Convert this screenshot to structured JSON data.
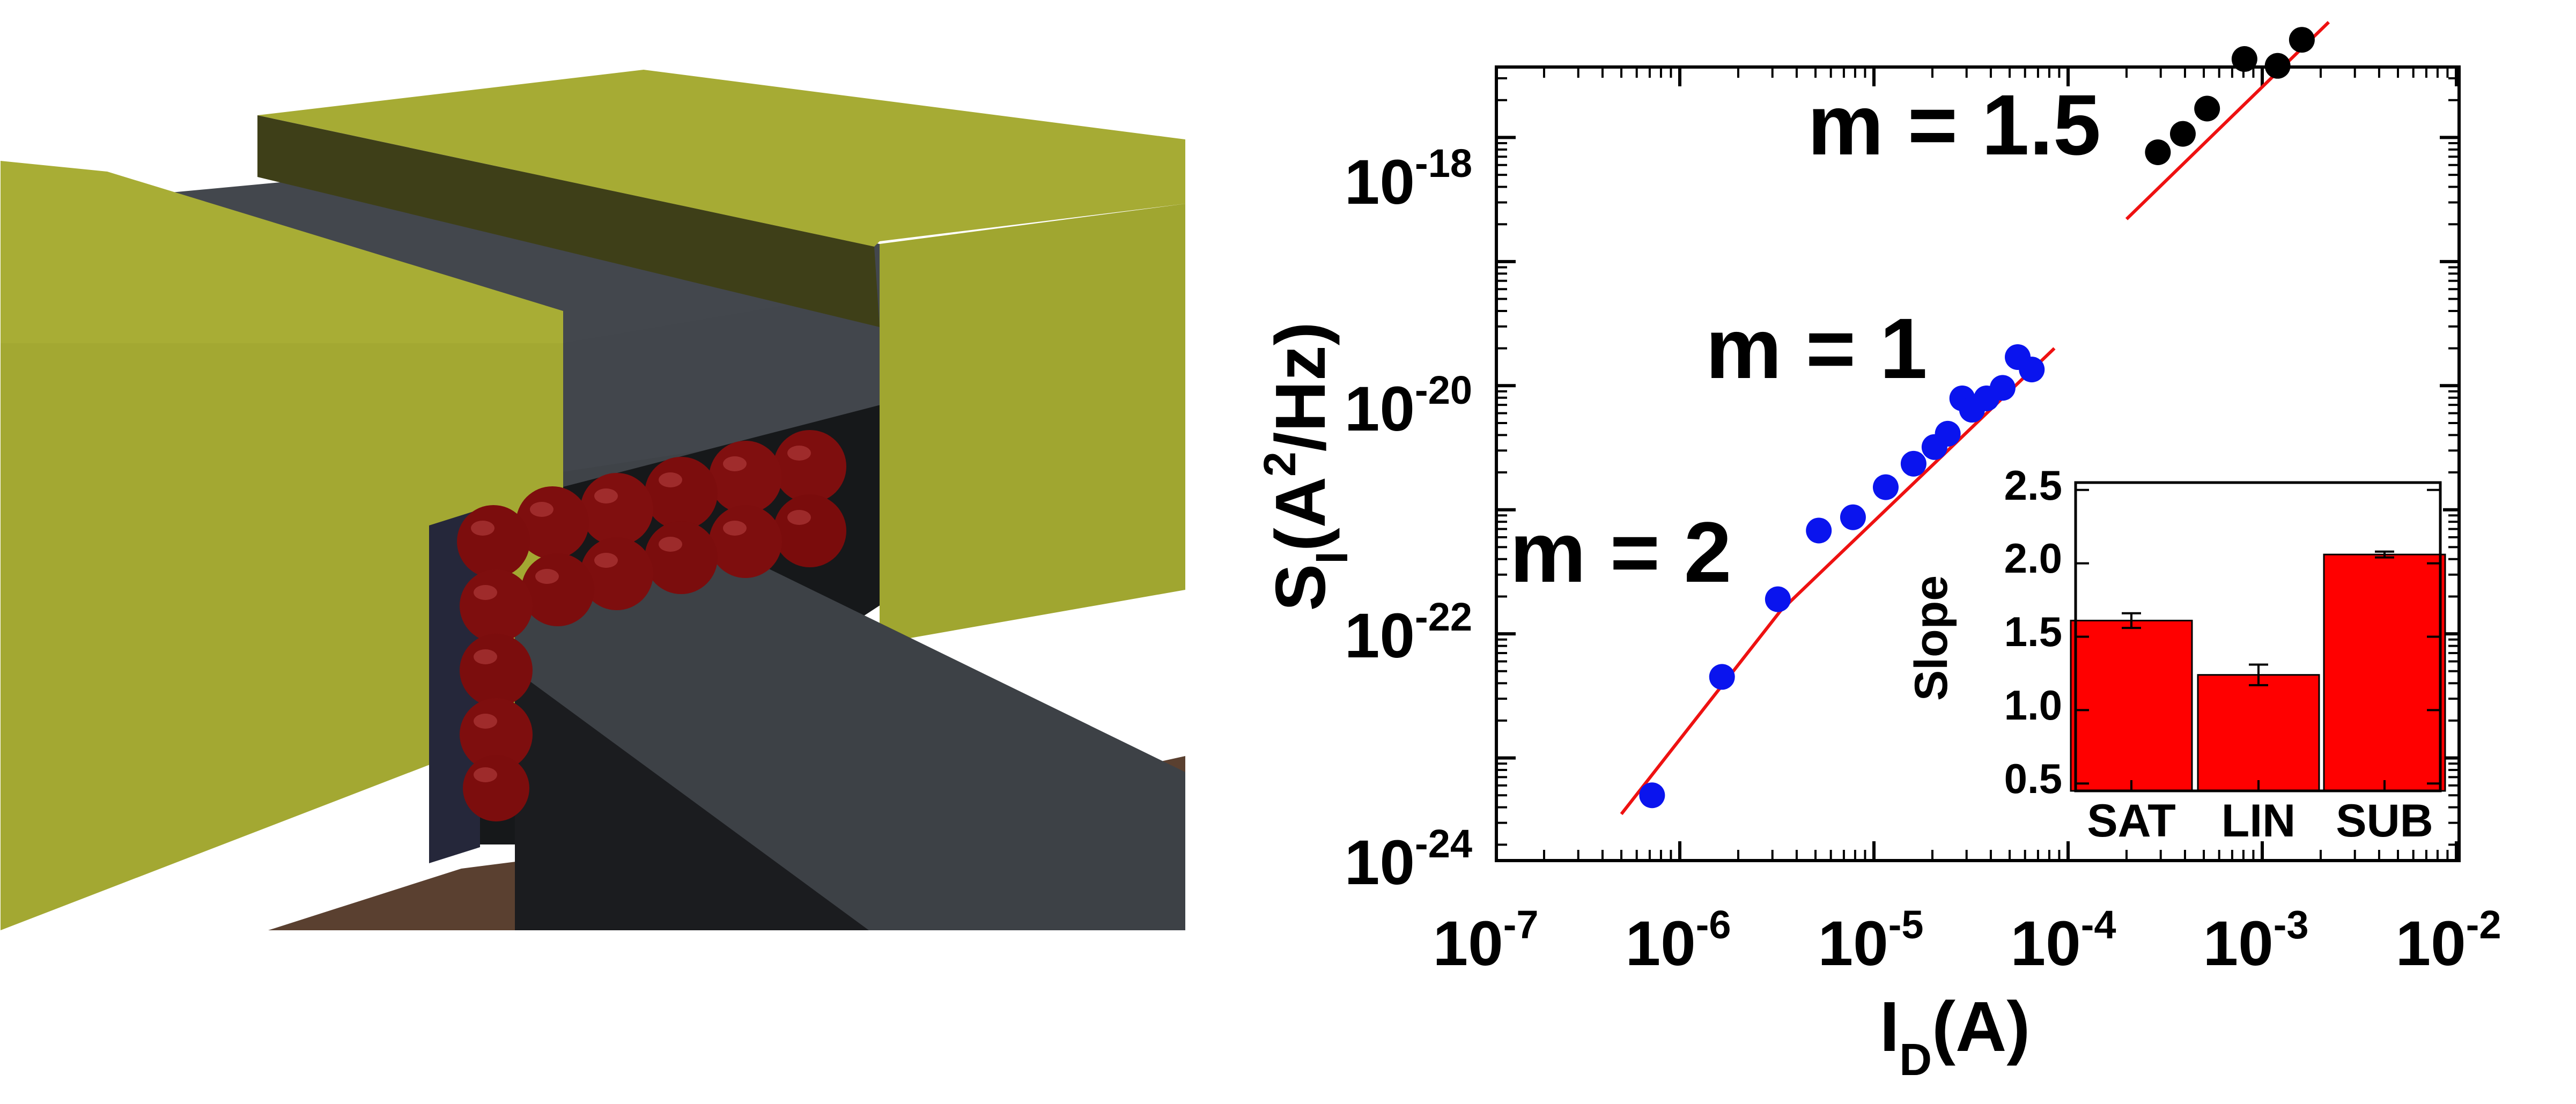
{
  "colors": {
    "electrode": "#a3a832",
    "electrode_side": "#3e3f18",
    "channel": "#42464c",
    "channel_dark": "#1d1f22",
    "substrate": "#5a4030",
    "qd_sphere": "#7e0e0e",
    "blue_points": "#0a14ee",
    "black_points": "#000000",
    "fit_line": "#ee1111",
    "bar": "#ff0000"
  },
  "chart_data": [
    {
      "type": "scatter",
      "xscale": "log",
      "yscale": "log",
      "xlim": [
        1e-07,
        0.01
      ],
      "ylim": [
        1e-24,
        1e-17
      ],
      "x_ticks": [
        {
          "base": "10",
          "exp": "-7",
          "value": 1e-07
        },
        {
          "base": "10",
          "exp": "-6",
          "value": 1e-06
        },
        {
          "base": "10",
          "exp": "-5",
          "value": 1e-05
        },
        {
          "base": "10",
          "exp": "-4",
          "value": 0.0001
        },
        {
          "base": "10",
          "exp": "-3",
          "value": 0.001
        },
        {
          "base": "10",
          "exp": "-2",
          "value": 0.01
        }
      ],
      "y_ticks": [
        {
          "base": "10",
          "exp": "-18",
          "value": 1e-18
        },
        {
          "base": "10",
          "exp": "-20",
          "value": 1e-20
        },
        {
          "base": "10",
          "exp": "-22",
          "value": 1e-22
        },
        {
          "base": "10",
          "exp": "-24",
          "value": 1e-24
        }
      ],
      "xlabel": {
        "main": "I",
        "sub": "D",
        "unit": "(A)"
      },
      "ylabel": {
        "main": "S",
        "sub": "I",
        "unit_pre": "(A",
        "sup": "2",
        "unit_post": "/Hz)"
      },
      "series": [
        {
          "marker": "circle",
          "color": "#0a14ee",
          "x": [
            7.2e-07,
            1.65e-06,
            3.2e-06,
            5.2e-06,
            7.8e-06,
            1.15e-05,
            1.6e-05,
            2.05e-05,
            2.4e-05,
            2.85e-05,
            3.2e-05,
            3.8e-05,
            4.6e-05,
            5.5e-05,
            6.5e-05
          ],
          "y": [
            5e-24,
            4.5e-23,
            1.9e-22,
            6.8e-22,
            8.7e-22,
            1.52e-21,
            2.35e-21,
            3.2e-21,
            4.1e-21,
            7.9e-21,
            6.4e-21,
            7.9e-21,
            9.6e-21,
            1.7e-20,
            1.35e-20
          ]
        },
        {
          "marker": "circle",
          "color": "#000000",
          "x": [
            0.00029,
            0.00039,
            0.00052,
            0.00081,
            0.0012,
            0.0016
          ],
          "y": [
            7.6e-19,
            1.07e-18,
            1.71e-18,
            4.29e-18,
            3.78e-18,
            6.13e-18
          ]
        }
      ],
      "fits": [
        {
          "color": "#ee1111",
          "x": [
            5e-07,
            3.3e-06
          ],
          "y": [
            3.53e-24,
            1.53e-22
          ]
        },
        {
          "color": "#ee1111",
          "x": [
            3.3e-06,
            8.5e-05
          ],
          "y": [
            1.53e-22,
            2e-20
          ]
        },
        {
          "color": "#ee1111",
          "x": [
            0.0002,
            0.0022
          ],
          "y": [
            2.2e-19,
            8.5e-18
          ]
        }
      ],
      "annotations": [
        "m = 2",
        "m = 1",
        "m = 1.5"
      ]
    },
    {
      "type": "bar",
      "categories": [
        "SAT",
        "LIN",
        "SUB"
      ],
      "values": [
        1.61,
        1.24,
        2.06
      ],
      "errors": [
        0.05,
        0.07,
        0.02
      ],
      "ylim": [
        0.45,
        2.55
      ],
      "y_ticks": [
        "2.5",
        "2.0",
        "1.5",
        "1.0",
        "0.5"
      ],
      "ylabel": "Slope",
      "color": "#ff0000"
    }
  ]
}
